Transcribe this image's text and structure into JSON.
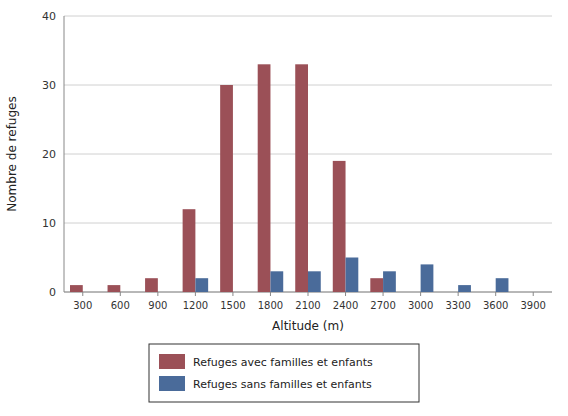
{
  "chart_data": {
    "type": "bar",
    "xlabel": "Altitude (m)",
    "ylabel": "Nombre de refuges",
    "x": [
      300,
      600,
      900,
      1200,
      1500,
      1800,
      2100,
      2400,
      2700,
      3000,
      3300,
      3600,
      3900
    ],
    "xlim": [
      150,
      4050
    ],
    "xticks": [
      300,
      600,
      900,
      1200,
      1500,
      1800,
      2100,
      2400,
      2700,
      3000,
      3300,
      3600,
      3900
    ],
    "series": [
      {
        "name": "Refuges avec familles et enfants",
        "color": "#9b5057",
        "values": [
          1,
          1,
          2,
          12,
          30,
          33,
          33,
          19,
          2,
          0,
          0,
          0,
          0
        ]
      },
      {
        "name": "Refuges sans familles et enfants",
        "color": "#4a6b9a",
        "values": [
          0,
          0,
          0,
          2,
          0,
          3,
          3,
          5,
          3,
          4,
          1,
          2,
          0
        ]
      }
    ],
    "ylim": [
      0,
      40
    ],
    "yticks": [
      0,
      10,
      20,
      30,
      40
    ],
    "grid": true,
    "legend": "bottom"
  }
}
